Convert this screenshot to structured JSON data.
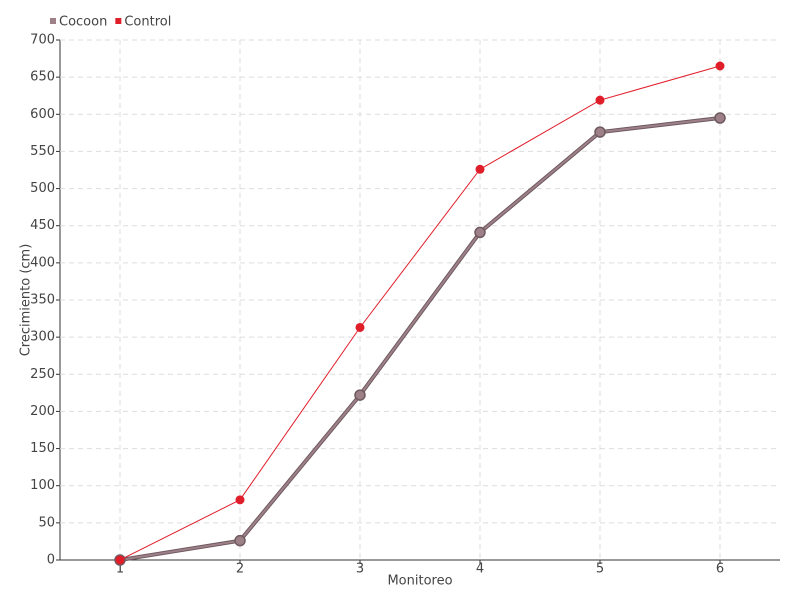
{
  "chart_data": {
    "type": "line",
    "x_label": "Monitoreo",
    "y_label": "Crecimiento (cm)",
    "categories": [
      "1",
      "2",
      "3",
      "4",
      "5",
      "6"
    ],
    "series": [
      {
        "name": "Cocoon",
        "color": "#9e8088",
        "values": [
          0,
          26,
          222,
          441,
          576,
          595
        ]
      },
      {
        "name": "Control",
        "color": "#e01e2a",
        "values": [
          0,
          81,
          313,
          526,
          619,
          665
        ]
      }
    ],
    "ylim": [
      0,
      700
    ],
    "yticks": [
      0,
      50,
      100,
      150,
      200,
      250,
      300,
      350,
      400,
      450,
      500,
      550,
      600,
      650,
      700
    ],
    "grid": true,
    "legend": "top-left"
  }
}
